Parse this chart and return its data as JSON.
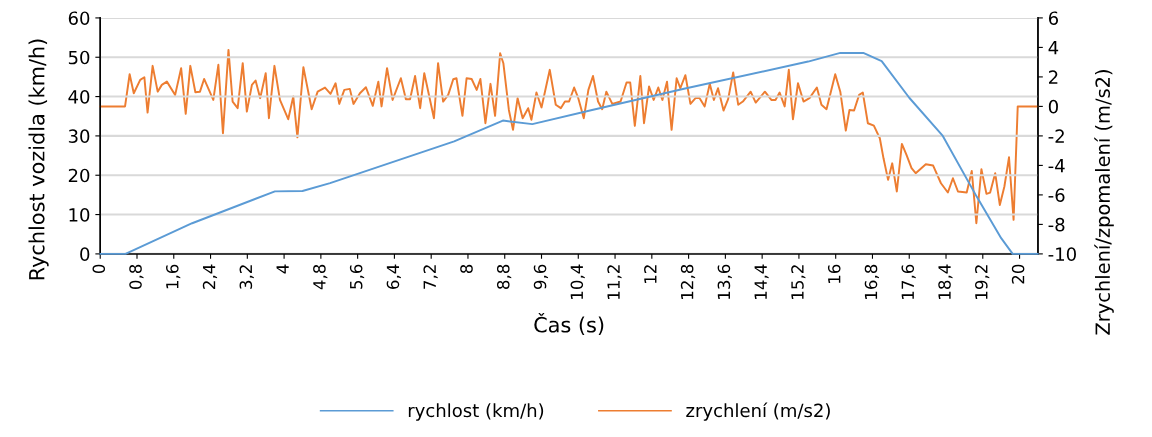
{
  "chart_data": {
    "type": "line",
    "xlabel": "Čas (s)",
    "ylabel": "Rychlost vozidla (km/h)",
    "y2label": "Zrychlení/zpomalení (m/s2)",
    "xlim": [
      0,
      20.4
    ],
    "xticks": [
      0,
      {
        "value": 0.8,
        "label": "0,8"
      },
      {
        "value": 1.6,
        "label": "1,6"
      },
      {
        "value": 2.4,
        "label": "2,4"
      },
      {
        "value": 3.2,
        "label": "3,2"
      },
      4,
      {
        "value": 4.8,
        "label": "4,8"
      },
      {
        "value": 5.6,
        "label": "5,6"
      },
      {
        "value": 6.4,
        "label": "6,4"
      },
      {
        "value": 7.2,
        "label": "7,2"
      },
      8,
      {
        "value": 8.8,
        "label": "8,8"
      },
      {
        "value": 9.6,
        "label": "9,6"
      },
      {
        "value": 10.4,
        "label": "10,4"
      },
      {
        "value": 11.2,
        "label": "11,2"
      },
      12,
      {
        "value": 12.8,
        "label": "12,8"
      },
      {
        "value": 13.6,
        "label": "13,6"
      },
      {
        "value": 14.4,
        "label": "14,4"
      },
      {
        "value": 15.2,
        "label": "15,2"
      },
      16,
      {
        "value": 16.8,
        "label": "16,8"
      },
      {
        "value": 17.6,
        "label": "17,6"
      },
      {
        "value": 18.4,
        "label": "18,4"
      },
      {
        "value": 19.2,
        "label": "19,2"
      },
      20
    ],
    "ylim": [
      0,
      60
    ],
    "yticks": [
      0,
      10,
      20,
      30,
      40,
      50,
      60
    ],
    "y2lim": [
      -10,
      6
    ],
    "y2ticks": [
      -10,
      -8,
      -6,
      -4,
      -2,
      0,
      2,
      4,
      6
    ],
    "grid": "y",
    "legend": "bottom",
    "marker": "none",
    "line_style": "solid",
    "series": [
      {
        "name": "rychlost (km/h)",
        "color": "#5b9bd5",
        "x": [
          0,
          0.55,
          2.0,
          3.8,
          4.4,
          5,
          7.7,
          8.76,
          9.4,
          10.7,
          12.7,
          15.4,
          16.1,
          16.6,
          17.0,
          17.6,
          18.33,
          19.07,
          19.6,
          19.85,
          20.4
        ],
        "values": [
          0,
          0,
          7.8,
          15.9,
          16,
          18,
          28.6,
          33.9,
          33,
          36.6,
          42,
          48.9,
          51.1,
          51.1,
          49,
          39.7,
          30,
          14.5,
          4,
          0,
          0
        ]
      },
      {
        "name": "zrychlení (m/s2)",
        "color": "#ed7d31",
        "axis": "y2",
        "x": [
          0,
          0.54,
          0.64,
          0.73,
          0.87,
          0.96,
          1.03,
          1.14,
          1.25,
          1.34,
          1.45,
          1.63,
          1.76,
          1.86,
          1.96,
          2.07,
          2.17,
          2.26,
          2.46,
          2.57,
          2.67,
          2.79,
          2.88,
          2.99,
          3.1,
          3.19,
          3.3,
          3.38,
          3.48,
          3.6,
          3.67,
          3.79,
          3.91,
          4.09,
          4.2,
          4.29,
          4.42,
          4.6,
          4.73,
          4.89,
          5.01,
          5.12,
          5.2,
          5.31,
          5.43,
          5.51,
          5.65,
          5.78,
          5.93,
          6.05,
          6.12,
          6.24,
          6.36,
          6.54,
          6.65,
          6.74,
          6.85,
          6.96,
          7.05,
          7.26,
          7.35,
          7.46,
          7.57,
          7.68,
          7.75,
          7.88,
          7.97,
          8.08,
          8.19,
          8.27,
          8.38,
          8.49,
          8.59,
          8.7,
          8.77,
          8.89,
          8.98,
          9.08,
          9.19,
          9.31,
          9.38,
          9.49,
          9.6,
          9.78,
          9.91,
          10.02,
          10.11,
          10.2,
          10.31,
          10.4,
          10.52,
          10.62,
          10.72,
          10.83,
          10.92,
          11.01,
          11.14,
          11.32,
          11.45,
          11.53,
          11.63,
          11.75,
          11.83,
          11.94,
          12.04,
          12.14,
          12.23,
          12.33,
          12.43,
          12.54,
          12.62,
          12.73,
          12.84,
          12.95,
          13.04,
          13.15,
          13.26,
          13.35,
          13.44,
          13.56,
          13.66,
          13.77,
          13.88,
          13.98,
          14.15,
          14.26,
          14.46,
          14.6,
          14.69,
          14.78,
          14.89,
          14.98,
          15.07,
          15.18,
          15.3,
          15.43,
          15.59,
          15.69,
          15.8,
          15.99,
          16.1,
          16.22,
          16.3,
          16.4,
          16.51,
          16.59,
          16.7,
          16.83,
          16.96,
          17.04,
          17.14,
          17.23,
          17.33,
          17.44,
          17.54,
          17.65,
          17.74,
          17.96,
          18.12,
          18.29,
          18.44,
          18.55,
          18.66,
          18.85,
          18.96,
          19.06,
          19.17,
          19.28,
          19.36,
          19.47,
          19.57,
          19.67,
          19.77,
          19.87,
          19.96,
          20.4
        ],
        "values": [
          0,
          0,
          2.18,
          0.89,
          1.8,
          1.98,
          -0.42,
          2.75,
          1.0,
          1.46,
          1.68,
          0.78,
          2.59,
          -0.5,
          2.75,
          0.96,
          1.0,
          1.86,
          0.44,
          2.82,
          -1.82,
          3.83,
          0.33,
          -0.12,
          2.93,
          -0.35,
          1.46,
          1.75,
          0.56,
          2.25,
          -0.8,
          2.75,
          0.44,
          -0.87,
          0.67,
          -2.1,
          2.66,
          -0.19,
          1.0,
          1.28,
          0.85,
          1.57,
          0.17,
          1.12,
          1.19,
          0.17,
          0.89,
          1.3,
          0.04,
          1.68,
          0,
          2.59,
          0.44,
          1.91,
          0.49,
          0.49,
          2.06,
          -0.12,
          2.25,
          -0.8,
          2.93,
          0.33,
          0.78,
          1.84,
          1.91,
          -0.64,
          1.91,
          1.86,
          1.12,
          1.86,
          -1.14,
          1.53,
          -0.64,
          3.6,
          2.93,
          -0.24,
          -1.59,
          0.56,
          -0.8,
          -0.12,
          -0.91,
          0.94,
          -0.07,
          2.48,
          0.11,
          -0.12,
          0.33,
          0.33,
          1.28,
          0.56,
          -0.8,
          1.12,
          2.06,
          0.33,
          -0.19,
          1.0,
          0.17,
          0.33,
          1.62,
          1.62,
          -1.32,
          2.06,
          -1.14,
          1.35,
          0.44,
          1.28,
          0.44,
          1.68,
          -1.59,
          1.91,
          1.23,
          2.12,
          0.17,
          0.56,
          0.56,
          0,
          1.53,
          0.44,
          1.23,
          -0.28,
          0.49,
          2.3,
          0.11,
          0.33,
          1.0,
          0.26,
          1.0,
          0.44,
          0.44,
          0.94,
          0,
          2.48,
          -0.87,
          1.57,
          0.33,
          0.56,
          1.28,
          0.11,
          -0.19,
          2.18,
          1.0,
          -1.64,
          -0.24,
          -0.28,
          0.78,
          0.94,
          -1.14,
          -1.3,
          -2.16,
          -3.52,
          -4.98,
          -3.86,
          -5.77,
          -2.54,
          -3.29,
          -4.19,
          -4.53,
          -3.92,
          -4.01,
          -5.21,
          -5.84,
          -4.87,
          -5.77,
          -5.84,
          -4.38,
          -7.92,
          -4.26,
          -5.93,
          -5.84,
          -4.53,
          -6.68,
          -5.43,
          -3.45,
          -7.69,
          0,
          0
        ]
      }
    ]
  }
}
